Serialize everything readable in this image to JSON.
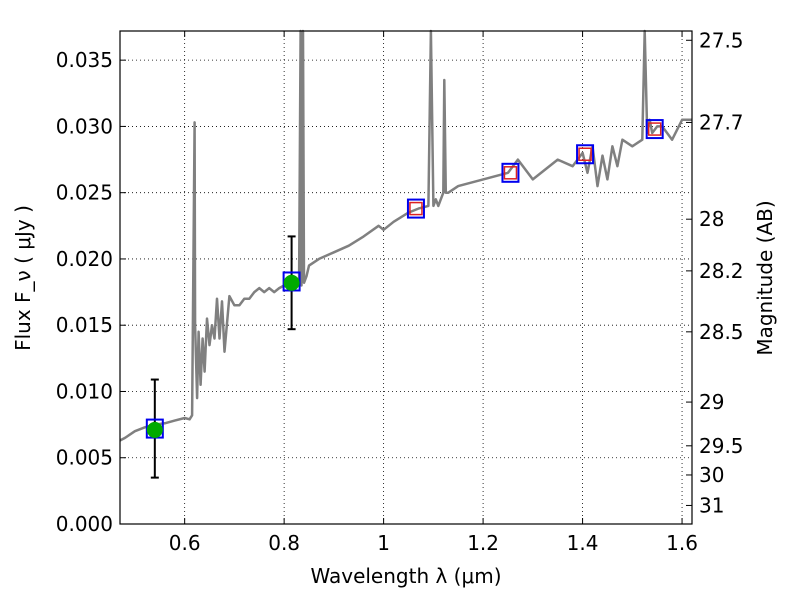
{
  "chart_data": {
    "type": "line",
    "xlabel": "Wavelength  λ (μm)",
    "ylabel": "Flux  F_ν  ( μJy )",
    "ylabel_right": "Magnitude (AB)",
    "xlim": [
      0.47,
      1.62
    ],
    "ylim": [
      0.0,
      0.0372
    ],
    "grid": true,
    "x_ticks": [
      0.6,
      0.8,
      1.0,
      1.2,
      1.4,
      1.6
    ],
    "x_tick_labels": [
      "0.6",
      "0.8",
      "1",
      "1.2",
      "1.4",
      "1.6"
    ],
    "y_ticks": [
      0.0,
      0.005,
      0.01,
      0.015,
      0.02,
      0.025,
      0.03,
      0.035
    ],
    "y_tick_labels": [
      "0.000",
      "0.005",
      "0.010",
      "0.015",
      "0.020",
      "0.025",
      "0.030",
      "0.035"
    ],
    "right_ticks": [
      {
        "label": "27.5",
        "flux": 0.0365
      },
      {
        "label": "27.7",
        "flux": 0.0303
      },
      {
        "label": "28",
        "flux": 0.023
      },
      {
        "label": "28.2",
        "flux": 0.0191
      },
      {
        "label": "28.5",
        "flux": 0.0145
      },
      {
        "label": "29",
        "flux": 0.0092
      },
      {
        "label": "29.5",
        "flux": 0.0059
      },
      {
        "label": "30",
        "flux": 0.0037
      },
      {
        "label": "31",
        "flux": 0.0014
      }
    ],
    "spectrum": {
      "color": "#808080",
      "x": [
        0.47,
        0.48,
        0.5,
        0.52,
        0.54,
        0.56,
        0.58,
        0.6,
        0.61,
        0.615,
        0.62,
        0.621,
        0.625,
        0.628,
        0.632,
        0.636,
        0.64,
        0.645,
        0.65,
        0.655,
        0.66,
        0.665,
        0.67,
        0.675,
        0.68,
        0.69,
        0.7,
        0.71,
        0.72,
        0.73,
        0.74,
        0.75,
        0.76,
        0.77,
        0.78,
        0.79,
        0.8,
        0.81,
        0.82,
        0.825,
        0.83,
        0.833,
        0.835,
        0.838,
        0.84,
        0.845,
        0.85,
        0.87,
        0.9,
        0.93,
        0.96,
        0.99,
        1.0,
        1.02,
        1.05,
        1.07,
        1.09,
        1.095,
        1.1,
        1.105,
        1.11,
        1.12,
        1.122,
        1.125,
        1.13,
        1.15,
        1.2,
        1.25,
        1.27,
        1.3,
        1.35,
        1.38,
        1.4,
        1.41,
        1.42,
        1.43,
        1.44,
        1.45,
        1.46,
        1.47,
        1.48,
        1.5,
        1.52,
        1.525,
        1.53,
        1.535,
        1.54,
        1.55,
        1.56,
        1.58,
        1.6,
        1.62
      ],
      "y": [
        0.0063,
        0.0065,
        0.007,
        0.0073,
        0.0075,
        0.0076,
        0.0078,
        0.008,
        0.0079,
        0.0082,
        0.0303,
        0.015,
        0.0095,
        0.0145,
        0.0105,
        0.014,
        0.0115,
        0.0155,
        0.0135,
        0.015,
        0.014,
        0.017,
        0.014,
        0.0168,
        0.013,
        0.0172,
        0.0165,
        0.0165,
        0.017,
        0.017,
        0.0175,
        0.0178,
        0.0175,
        0.0178,
        0.0175,
        0.0178,
        0.018,
        0.0178,
        0.0185,
        0.018,
        0.0185,
        0.0372,
        0.018,
        0.0372,
        0.0182,
        0.0187,
        0.0195,
        0.02,
        0.0205,
        0.021,
        0.0217,
        0.0225,
        0.0222,
        0.0228,
        0.0235,
        0.0238,
        0.024,
        0.0372,
        0.024,
        0.0245,
        0.024,
        0.025,
        0.0335,
        0.025,
        0.025,
        0.0255,
        0.026,
        0.0265,
        0.0275,
        0.026,
        0.0275,
        0.027,
        0.028,
        0.0265,
        0.0285,
        0.0255,
        0.0278,
        0.026,
        0.0285,
        0.027,
        0.029,
        0.0285,
        0.029,
        0.0372,
        0.0295,
        0.0305,
        0.0295,
        0.03,
        0.03,
        0.029,
        0.0305,
        0.0305
      ]
    },
    "measured_points": {
      "color": "#00aa00",
      "points": [
        {
          "x": 0.54,
          "y": 0.0071,
          "yerr_low": 0.0035,
          "yerr_high": 0.0109
        },
        {
          "x": 0.815,
          "y": 0.0182,
          "yerr_low": 0.0147,
          "yerr_high": 0.0217
        }
      ]
    },
    "model_photometry": {
      "box_color": "#0000ee",
      "inner_color": "#dd2222",
      "points": [
        {
          "x": 0.54,
          "y": 0.0072,
          "inner": false
        },
        {
          "x": 0.815,
          "y": 0.0183,
          "inner": false
        },
        {
          "x": 1.065,
          "y": 0.0238,
          "inner": true
        },
        {
          "x": 1.255,
          "y": 0.0265,
          "inner": true
        },
        {
          "x": 1.405,
          "y": 0.0279,
          "inner": true
        },
        {
          "x": 1.545,
          "y": 0.0298,
          "inner": true
        }
      ]
    }
  }
}
